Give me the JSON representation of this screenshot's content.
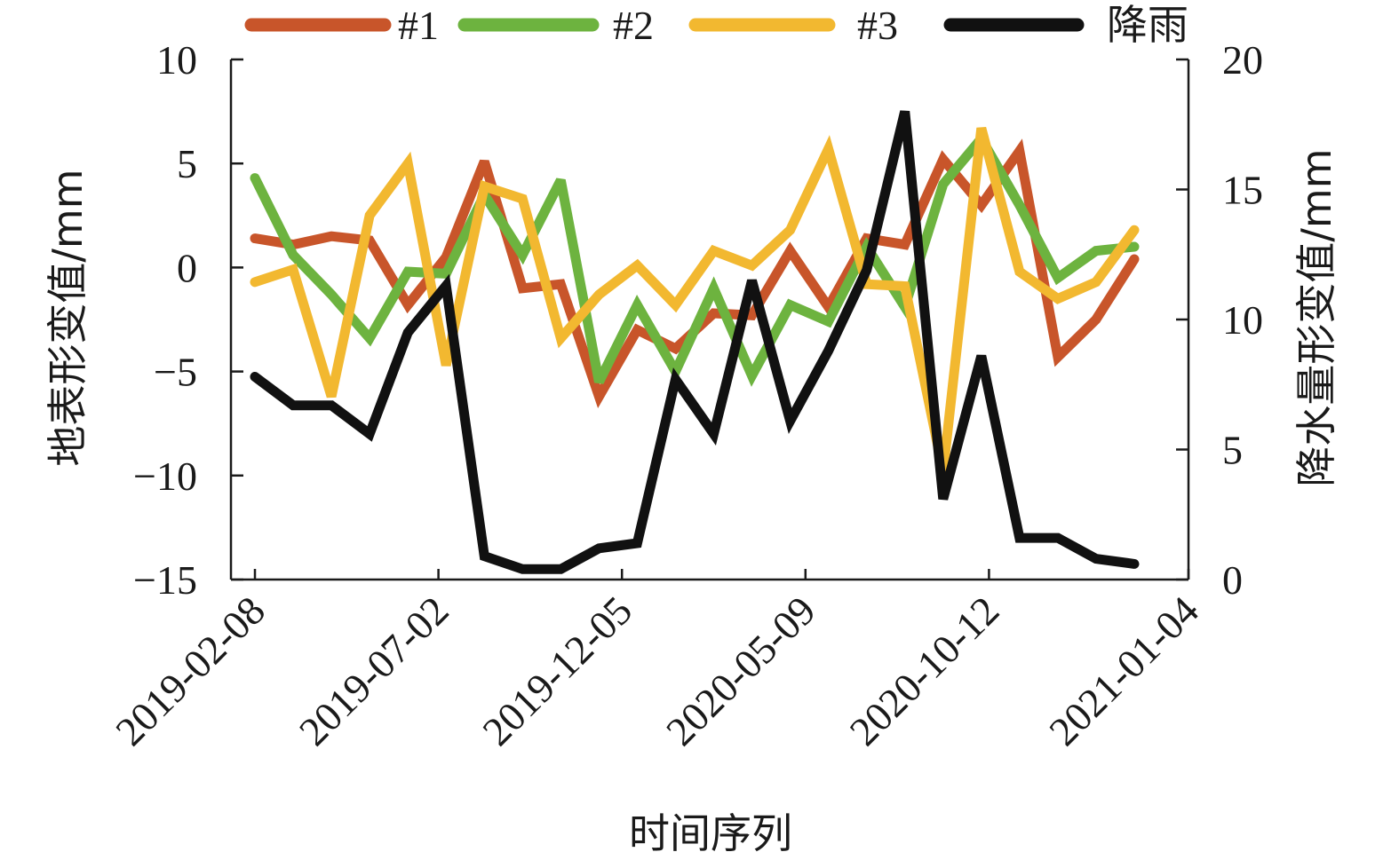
{
  "chart_data": {
    "type": "line",
    "xlabel": "时间序列",
    "ylabel_left": "地表形变值/mm",
    "ylabel_right": "降水量形变值/mm",
    "ylim_left": [
      -15,
      10
    ],
    "ylim_right": [
      0,
      20
    ],
    "yticks_left": [
      10,
      5,
      0,
      -5,
      -10,
      -15
    ],
    "yticks_left_labels": [
      "10",
      "5",
      "0",
      "−5",
      "−10",
      "−15"
    ],
    "yticks_right": [
      20,
      15,
      10,
      5,
      0
    ],
    "yticks_right_labels": [
      "20",
      "15",
      "10",
      "5",
      "0"
    ],
    "x_tick_labels": [
      "2019-02-08",
      "2019-07-02",
      "2019-12-05",
      "2020-05-09",
      "2020-10-12",
      "2021-01-04"
    ],
    "x_tick_positions": [
      0,
      5,
      10,
      15,
      20,
      25
    ],
    "x_count": 25,
    "series": [
      {
        "name": "#1",
        "color": "#c8552a",
        "axis": "left",
        "values": [
          1.4,
          1.1,
          1.5,
          1.3,
          -1.8,
          0.5,
          5.1,
          -1.0,
          -0.8,
          -6.2,
          -3.0,
          -3.9,
          -2.2,
          -2.3,
          0.8,
          -1.9,
          1.4,
          1.1,
          5.2,
          3.0,
          5.6,
          -4.3,
          -2.5,
          0.4
        ]
      },
      {
        "name": "#2",
        "color": "#6db33f",
        "axis": "left",
        "values": [
          4.3,
          0.6,
          -1.3,
          -3.4,
          -0.2,
          -0.3,
          3.5,
          0.6,
          4.2,
          -5.5,
          -1.8,
          -5.0,
          -1.0,
          -5.2,
          -1.8,
          -2.6,
          1.0,
          -1.9,
          4.0,
          6.2,
          3.0,
          -0.5,
          0.8,
          1.0
        ]
      },
      {
        "name": "#3",
        "color": "#f2b830",
        "axis": "left",
        "values": [
          -0.7,
          -0.1,
          -6.2,
          2.5,
          5.0,
          -4.7,
          3.9,
          3.3,
          -3.4,
          -1.3,
          0.1,
          -1.8,
          0.8,
          0.1,
          1.8,
          5.7,
          -0.8,
          -0.9,
          -9.8,
          6.7,
          -0.2,
          -1.5,
          -0.7,
          1.8
        ]
      },
      {
        "name": "降雨",
        "color": "#111111",
        "axis": "right",
        "values": [
          7.8,
          6.7,
          6.7,
          5.6,
          9.5,
          11.3,
          0.9,
          0.4,
          0.4,
          1.2,
          1.4,
          7.7,
          5.6,
          11.5,
          6.1,
          8.8,
          11.9,
          18.0,
          3.1,
          8.6,
          1.6,
          1.6,
          0.8,
          0.6
        ]
      }
    ],
    "legend_position": "top"
  }
}
